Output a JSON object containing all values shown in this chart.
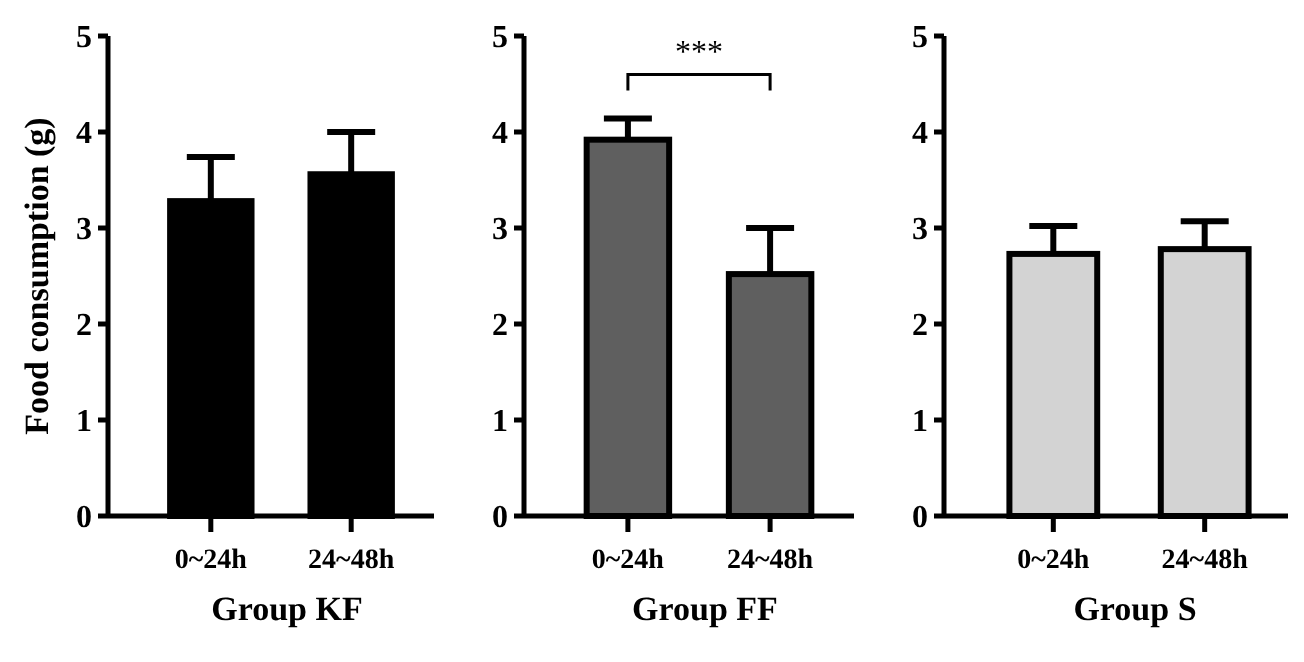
{
  "chart_data": [
    {
      "type": "bar",
      "xlabel": "Group KF",
      "ylabel": "Food consumption (g)",
      "categories": [
        "0~24h",
        "24~48h"
      ],
      "values": [
        3.28,
        3.56
      ],
      "errors": [
        [
          3.28,
          3.74
        ],
        [
          3.56,
          4.0
        ]
      ],
      "color": "#000000",
      "ylim": [
        0,
        5
      ],
      "yticks": [
        0,
        1,
        2,
        3,
        4,
        5
      ],
      "grid": false
    },
    {
      "type": "bar",
      "xlabel": "Group FF",
      "categories": [
        "0~24h",
        "24~48h"
      ],
      "values": [
        3.92,
        2.52
      ],
      "errors": [
        [
          3.92,
          4.14
        ],
        [
          2.52,
          3.0
        ]
      ],
      "color": "#5f5f5f",
      "ylim": [
        0,
        5
      ],
      "yticks": [
        0,
        1,
        2,
        3,
        4,
        5
      ],
      "grid": false,
      "annotations": [
        "***"
      ]
    },
    {
      "type": "bar",
      "xlabel": "Group S",
      "categories": [
        "0~24h",
        "24~48h"
      ],
      "values": [
        2.73,
        2.78
      ],
      "errors": [
        [
          2.73,
          3.02
        ],
        [
          2.78,
          3.07
        ]
      ],
      "color": "#d3d3d3",
      "ylim": [
        0,
        5
      ],
      "yticks": [
        0,
        1,
        2,
        3,
        4,
        5
      ],
      "grid": false
    }
  ]
}
